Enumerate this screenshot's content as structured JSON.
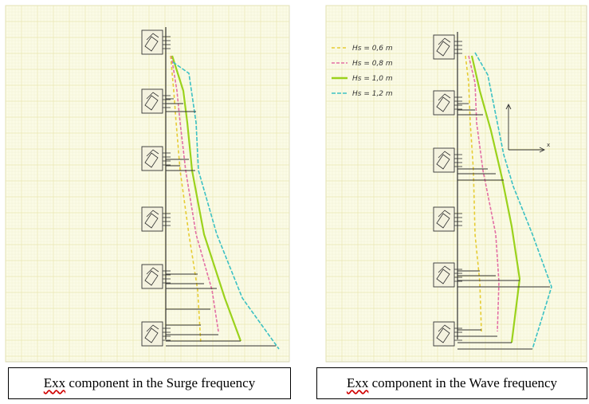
{
  "figure": {
    "left_panel": {
      "caption_abbr": "Exx",
      "caption_rest": " component in the Surge frequency"
    },
    "right_panel": {
      "caption_abbr": "Exx",
      "caption_rest": " component in the Wave frequency",
      "axis_label": "x"
    },
    "legend": [
      {
        "label": "Hs = 0,6 m",
        "color": "#e6cc33",
        "dash": "4,3"
      },
      {
        "label": "Hs = 0,8 m",
        "color": "#e36fa5",
        "dash": "4,2"
      },
      {
        "label": "Hs = 1,0 m",
        "color": "#9bd21c",
        "dash": ""
      },
      {
        "label": "Hs = 1,2 m",
        "color": "#3cc1c4",
        "dash": "5,2"
      }
    ],
    "colors": {
      "paper": "#fbfbe6",
      "grid_minor": "#f1f1cf",
      "grid_major": "#e8e6b0",
      "structure": "#333333"
    }
  }
}
